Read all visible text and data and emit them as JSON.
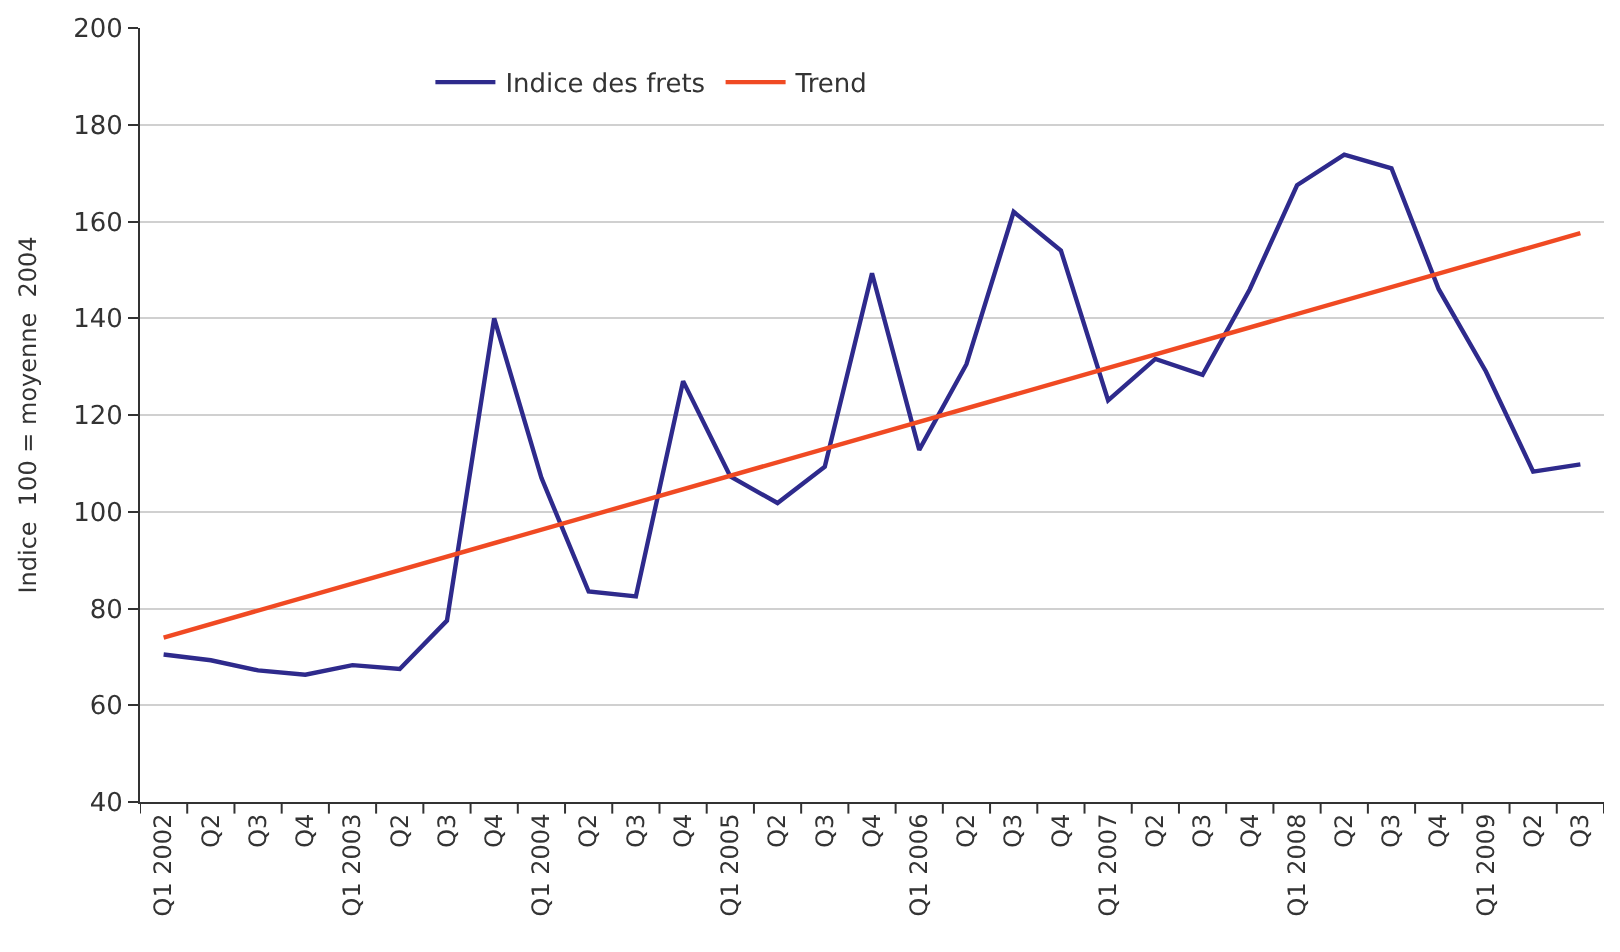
{
  "chart_data": {
    "type": "line",
    "ylabel": "Indice  100 = moyenne  2004",
    "categories": [
      "Q1 2002",
      "Q2",
      "Q3",
      "Q4",
      "Q1 2003",
      "Q2",
      "Q3",
      "Q4",
      "Q1 2004",
      "Q2",
      "Q3",
      "Q4",
      "Q1 2005",
      "Q2",
      "Q3",
      "Q4",
      "Q1 2006",
      "Q2",
      "Q3",
      "Q4",
      "Q1 2007",
      "Q2",
      "Q3",
      "Q4",
      "Q1 2008",
      "Q2",
      "Q3",
      "Q4",
      "Q1 2009",
      "Q2",
      "Q3"
    ],
    "series": [
      {
        "name": "Indice des frets",
        "color": "#2e2a8c",
        "values": [
          70.5,
          69.3,
          67.2,
          66.3,
          68.3,
          67.5,
          77.5,
          140,
          107,
          83.5,
          82.5,
          127,
          107.3,
          101.8,
          109.3,
          149.3,
          112.8,
          130.5,
          162,
          154,
          123,
          131.6,
          128.3,
          146,
          167.5,
          173.8,
          171,
          146,
          129,
          108.3,
          109.8
        ]
      },
      {
        "name": "Trend",
        "color": "#f04a23",
        "type": "line",
        "values": [
          74,
          null,
          null,
          null,
          null,
          null,
          null,
          null,
          null,
          null,
          null,
          null,
          null,
          null,
          null,
          null,
          null,
          null,
          null,
          null,
          null,
          null,
          null,
          null,
          null,
          null,
          null,
          null,
          null,
          null,
          157.6
        ]
      }
    ],
    "ylim": [
      40,
      200
    ],
    "yticks": [
      40,
      60,
      80,
      100,
      120,
      140,
      160,
      180,
      200
    ],
    "grid": "y",
    "legend": "top",
    "marker": "none",
    "line_style": "solid"
  }
}
